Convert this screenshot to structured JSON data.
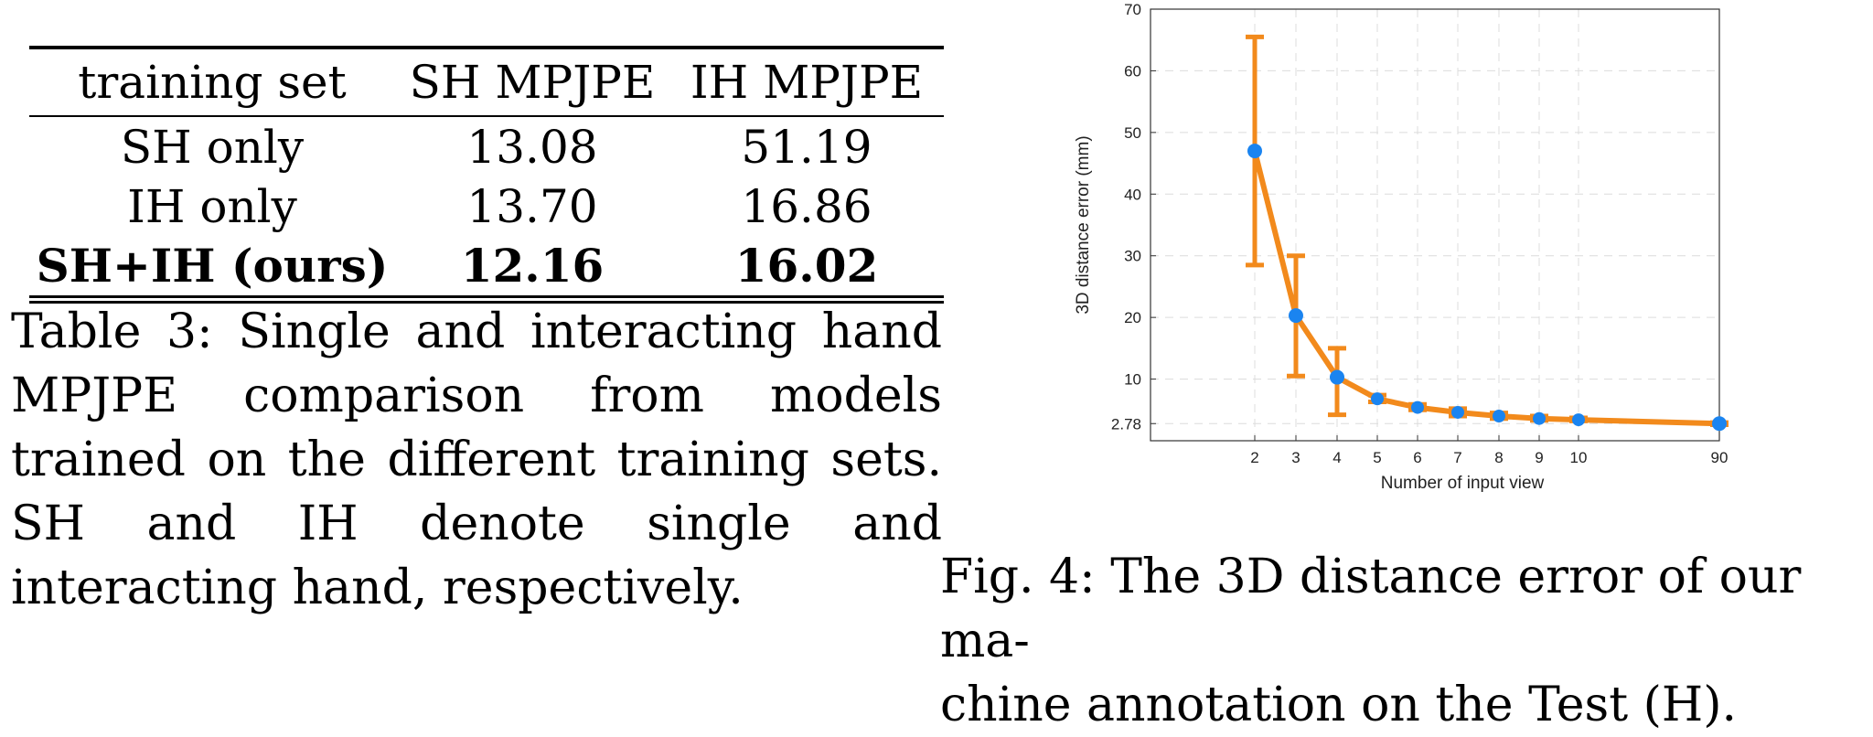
{
  "table": {
    "headers": [
      "training set",
      "SH MPJPE",
      "IH MPJPE"
    ],
    "rows": [
      {
        "training_set": "SH only",
        "sh": "13.08",
        "ih": "51.19"
      },
      {
        "training_set": "IH only",
        "sh": "13.70",
        "ih": "16.86"
      },
      {
        "training_set": "SH+IH (ours)",
        "sh": "12.16",
        "ih": "16.02"
      }
    ],
    "caption": "Table 3: Single and interacting hand MPJPE comparison from models trained on the different training sets. SH and IH denote single and interacting hand, respectively."
  },
  "figure": {
    "caption_line1": "Fig. 4: The 3D distance error of our ma-",
    "caption_line2": "chine annotation on the Test (H)."
  },
  "chart_data": {
    "type": "line",
    "xlabel": "Number of input view",
    "ylabel": "3D distance error (mm)",
    "categories": [
      "2",
      "3",
      "4",
      "5",
      "6",
      "7",
      "8",
      "9",
      "10",
      "90"
    ],
    "y": [
      47,
      20.3,
      10.3,
      6.8,
      5.4,
      4.6,
      4.0,
      3.6,
      3.4,
      2.78
    ],
    "error_low": [
      28.5,
      10.5,
      4.2,
      6.3,
      5.0,
      4.0,
      3.6,
      3.3,
      3.2,
      2.6
    ],
    "error_high": [
      65.5,
      30.0,
      15.0,
      7.4,
      5.9,
      5.2,
      4.5,
      4.0,
      3.7,
      2.95
    ],
    "y_ticks": [
      2.78,
      10,
      20,
      30,
      40,
      50,
      60,
      70
    ],
    "ylim": [
      0,
      70
    ],
    "grid": true,
    "line_color": "#f28a1c",
    "marker_color": "#1a84f0"
  }
}
